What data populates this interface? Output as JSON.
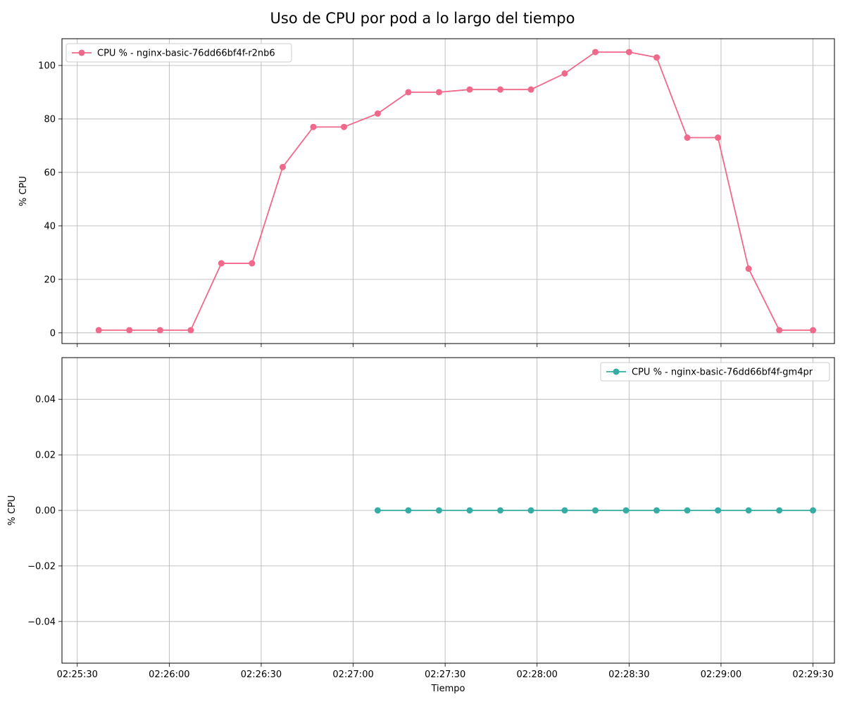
{
  "figure": {
    "title": "Uso de CPU por pod a lo largo del tiempo"
  },
  "chart_data": [
    {
      "type": "line",
      "title": "",
      "xlabel": "",
      "ylabel": "% CPU",
      "x_type": "time",
      "x_ticks": [
        "02:25:30",
        "02:26:00",
        "02:26:30",
        "02:27:00",
        "02:27:30",
        "02:28:00",
        "02:28:30",
        "02:29:00",
        "02:29:30"
      ],
      "x_tick_labels_shown": false,
      "xlim": [
        "02:25:25",
        "02:29:37"
      ],
      "ylim": [
        -4,
        110
      ],
      "y_ticks": [
        0,
        20,
        40,
        60,
        80,
        100
      ],
      "y_tick_labels": [
        "0",
        "20",
        "40",
        "60",
        "80",
        "100"
      ],
      "grid": true,
      "legend_position": "top-left",
      "series": [
        {
          "name": "CPU % - nginx-basic-76dd66bf4f-r2nb6",
          "color": "#f0688a",
          "marker": "circle",
          "x": [
            "02:25:37",
            "02:25:47",
            "02:25:57",
            "02:26:07",
            "02:26:17",
            "02:26:27",
            "02:26:37",
            "02:26:47",
            "02:26:57",
            "02:27:08",
            "02:27:18",
            "02:27:28",
            "02:27:38",
            "02:27:48",
            "02:27:58",
            "02:28:09",
            "02:28:19",
            "02:28:30",
            "02:28:39",
            "02:28:49",
            "02:28:59",
            "02:29:09",
            "02:29:19",
            "02:29:30"
          ],
          "y": [
            1,
            1,
            1,
            1,
            26,
            26,
            62,
            77,
            77,
            82,
            90,
            90,
            91,
            91,
            91,
            97,
            105,
            105,
            103,
            73,
            73,
            24,
            1,
            1
          ]
        }
      ]
    },
    {
      "type": "line",
      "title": "",
      "xlabel": "Tiempo",
      "ylabel": "% CPU",
      "x_type": "time",
      "x_ticks": [
        "02:25:30",
        "02:26:00",
        "02:26:30",
        "02:27:00",
        "02:27:30",
        "02:28:00",
        "02:28:30",
        "02:29:00",
        "02:29:30"
      ],
      "x_tick_labels": [
        "02:25:30",
        "02:26:00",
        "02:26:30",
        "02:27:00",
        "02:27:30",
        "02:28:00",
        "02:28:30",
        "02:29:00",
        "02:29:30"
      ],
      "xlim": [
        "02:25:25",
        "02:29:37"
      ],
      "ylim": [
        -0.055,
        0.055
      ],
      "y_ticks": [
        -0.04,
        -0.02,
        0.0,
        0.02,
        0.04
      ],
      "y_tick_labels": [
        "−0.04",
        "−0.02",
        "0.00",
        "0.02",
        "0.04"
      ],
      "grid": true,
      "legend_position": "top-right",
      "series": [
        {
          "name": "CPU % - nginx-basic-76dd66bf4f-gm4pr",
          "color": "#36ada4",
          "marker": "circle",
          "x": [
            "02:27:08",
            "02:27:18",
            "02:27:28",
            "02:27:38",
            "02:27:48",
            "02:27:58",
            "02:28:09",
            "02:28:19",
            "02:28:29",
            "02:28:39",
            "02:28:49",
            "02:28:59",
            "02:29:09",
            "02:29:19",
            "02:29:30"
          ],
          "y": [
            0,
            0,
            0,
            0,
            0,
            0,
            0,
            0,
            0,
            0,
            0,
            0,
            0,
            0,
            0
          ]
        }
      ]
    }
  ]
}
